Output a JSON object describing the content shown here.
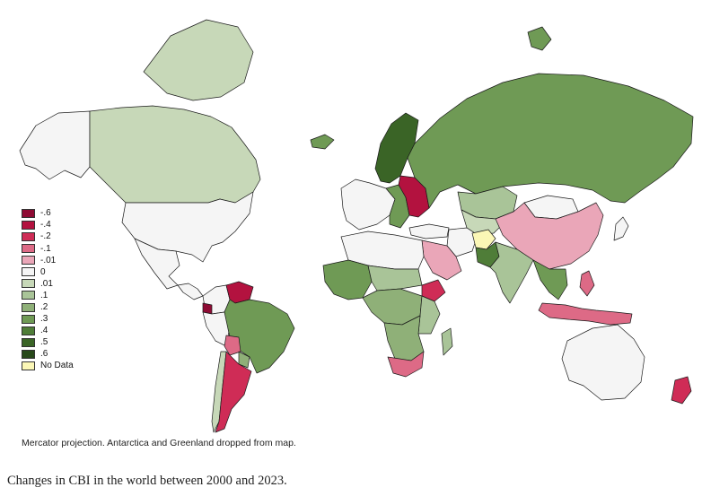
{
  "legend": {
    "items": [
      {
        "label": "-.6",
        "color": "#8e0b34"
      },
      {
        "label": "-.4",
        "color": "#b3123f"
      },
      {
        "label": "-.2",
        "color": "#cf2c56"
      },
      {
        "label": "-.1",
        "color": "#dd6a86"
      },
      {
        "label": "-.01",
        "color": "#eaa6b8"
      },
      {
        "label": "0",
        "color": "#f5f5f5"
      },
      {
        "label": ".01",
        "color": "#c7d8b8"
      },
      {
        "label": ".1",
        "color": "#a9c498"
      },
      {
        "label": ".2",
        "color": "#8fb078"
      },
      {
        "label": ".3",
        "color": "#6f9a55"
      },
      {
        "label": ".4",
        "color": "#4f7d38"
      },
      {
        "label": ".5",
        "color": "#3a6426"
      },
      {
        "label": ".6",
        "color": "#28491a"
      },
      {
        "label": "No Data",
        "color": "#fbf7b6"
      }
    ]
  },
  "map": {
    "regions": [
      {
        "id": "alaska",
        "color": "#f5f5f5"
      },
      {
        "id": "canada",
        "color": "#c7d8b8"
      },
      {
        "id": "canada-arctic-islands",
        "color": "#c7d8b8"
      },
      {
        "id": "united-states",
        "color": "#f5f5f5"
      },
      {
        "id": "mexico",
        "color": "#f5f5f5"
      },
      {
        "id": "central-america",
        "color": "#f5f5f5"
      },
      {
        "id": "colombia",
        "color": "#f5f5f5"
      },
      {
        "id": "venezuela",
        "color": "#b3123f"
      },
      {
        "id": "ecuador",
        "color": "#8e0b34"
      },
      {
        "id": "peru",
        "color": "#f5f5f5"
      },
      {
        "id": "brazil",
        "color": "#6f9a55"
      },
      {
        "id": "bolivia",
        "color": "#dd6a86"
      },
      {
        "id": "paraguay",
        "color": "#8fb078"
      },
      {
        "id": "chile",
        "color": "#c7d8b8"
      },
      {
        "id": "argentina",
        "color": "#cf2c56"
      },
      {
        "id": "iceland",
        "color": "#6f9a55"
      },
      {
        "id": "scandinavia",
        "color": "#3a6426"
      },
      {
        "id": "western-europe",
        "color": "#f5f5f5"
      },
      {
        "id": "eastern-europe",
        "color": "#6f9a55"
      },
      {
        "id": "belarus-ukraine",
        "color": "#b3123f"
      },
      {
        "id": "russia",
        "color": "#6f9a55"
      },
      {
        "id": "kazakhstan",
        "color": "#a9c498"
      },
      {
        "id": "central-asia",
        "color": "#c7d8b8"
      },
      {
        "id": "turkey",
        "color": "#f5f5f5"
      },
      {
        "id": "iran",
        "color": "#f5f5f5"
      },
      {
        "id": "afghanistan",
        "color": "#fbf7b6"
      },
      {
        "id": "pakistan",
        "color": "#4f7d38"
      },
      {
        "id": "india",
        "color": "#a9c498"
      },
      {
        "id": "china",
        "color": "#eaa6b8"
      },
      {
        "id": "mongolia",
        "color": "#f5f5f5"
      },
      {
        "id": "southeast-asia",
        "color": "#6f9a55"
      },
      {
        "id": "indonesia",
        "color": "#dd6a86"
      },
      {
        "id": "philippines",
        "color": "#dd6a86"
      },
      {
        "id": "japan",
        "color": "#f5f5f5"
      },
      {
        "id": "saudi-arabia",
        "color": "#eaa6b8"
      },
      {
        "id": "north-africa",
        "color": "#f5f5f5"
      },
      {
        "id": "west-africa",
        "color": "#6f9a55"
      },
      {
        "id": "sahel",
        "color": "#a9c498"
      },
      {
        "id": "central-africa",
        "color": "#8fb078"
      },
      {
        "id": "ethiopia",
        "color": "#cf2c56"
      },
      {
        "id": "east-africa",
        "color": "#a9c498"
      },
      {
        "id": "southern-africa",
        "color": "#8fb078"
      },
      {
        "id": "south-africa",
        "color": "#dd6a86"
      },
      {
        "id": "madagascar",
        "color": "#a9c498"
      },
      {
        "id": "australia",
        "color": "#f5f5f5"
      },
      {
        "id": "new-zealand",
        "color": "#cf2c56"
      },
      {
        "id": "svalbard",
        "color": "#6f9a55"
      }
    ]
  },
  "note": "Mercator projection. Antarctica and Greenland dropped from map.",
  "caption": "Changes in CBI in the world between 2000 and 2023."
}
